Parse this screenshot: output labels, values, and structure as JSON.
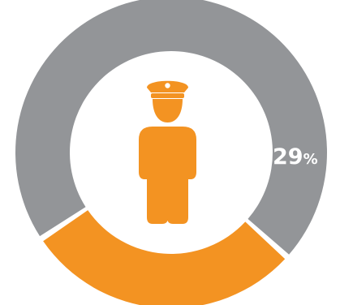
{
  "chart_data": {
    "type": "pie",
    "slices": [
      {
        "label": "29%",
        "value": 29,
        "color": "#F39322"
      },
      {
        "label": "",
        "value": 71,
        "color": "#939598"
      }
    ],
    "data_label": {
      "value": "29",
      "suffix": "%"
    }
  },
  "icon": {
    "name": "police-officer-icon",
    "color": "#F39322"
  },
  "colors": {
    "background": "#FFFFFF",
    "accent": "#F39322",
    "neutral": "#939598"
  }
}
